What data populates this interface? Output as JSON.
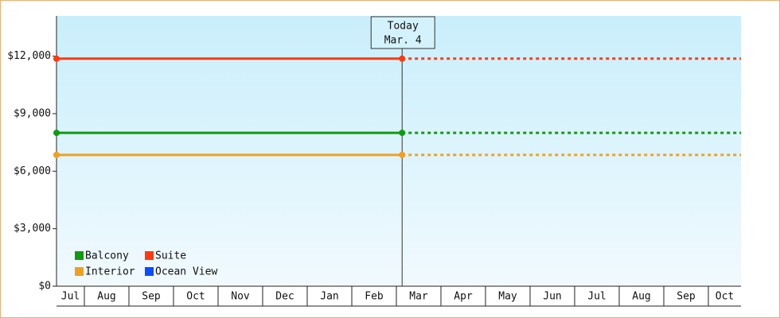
{
  "chart_data": {
    "type": "line",
    "categories": [
      "Jul",
      "Aug",
      "Sep",
      "Oct",
      "Nov",
      "Dec",
      "Jan",
      "Feb",
      "Mar",
      "Apr",
      "May",
      "Jun",
      "Jul",
      "Aug",
      "Sep",
      "Oct"
    ],
    "series": [
      {
        "name": "Balcony",
        "color": "#109a10",
        "values": [
          8000,
          8000,
          8000,
          8000,
          8000,
          8000,
          8000,
          8000,
          8000,
          8000,
          8000,
          8000,
          8000,
          8000,
          8000,
          8000
        ]
      },
      {
        "name": "Suite",
        "color": "#ff3a10",
        "values": [
          11870,
          11870,
          11870,
          11870,
          11870,
          11870,
          11870,
          11870,
          11870,
          11870,
          11870,
          11870,
          11870,
          11870,
          11870,
          11870
        ]
      },
      {
        "name": "Interior",
        "color": "#f0a020",
        "values": [
          6850,
          6850,
          6850,
          6850,
          6850,
          6850,
          6850,
          6850,
          6850,
          6850,
          6850,
          6850,
          6850,
          6850,
          6850,
          6850
        ]
      },
      {
        "name": "Ocean View",
        "color": "#0a4cff",
        "values": [
          null,
          null,
          null,
          null,
          null,
          null,
          null,
          null,
          null,
          null,
          null,
          null,
          null,
          null,
          null,
          null
        ]
      }
    ],
    "annotation": {
      "text": "Today",
      "date": "Mar. 4"
    },
    "ylim": [
      0,
      14100
    ],
    "yticks": [
      {
        "value": 0,
        "label": "$0"
      },
      {
        "value": 3000,
        "label": "$3,000"
      },
      {
        "value": 6000,
        "label": "$6,000"
      },
      {
        "value": 9000,
        "label": "$9,000"
      },
      {
        "value": 12000,
        "label": "$12,000"
      }
    ],
    "legend": "bottom-left"
  }
}
